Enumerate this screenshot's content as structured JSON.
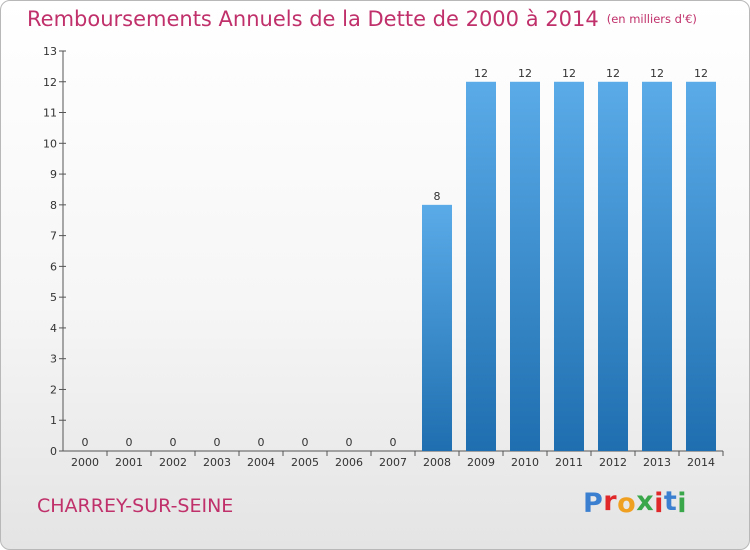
{
  "header": {
    "title": "Remboursements Annuels de la Dette de 2000 à 2014",
    "unit": "(en milliers d'€)"
  },
  "footer": {
    "commune": "CHARREY-SUR-SEINE",
    "logo": [
      "P",
      "r",
      "o",
      "x",
      "i",
      "t",
      "i"
    ]
  },
  "colors": {
    "title": "#c0306a",
    "bar_top": "#5aabe8",
    "bar_bottom": "#1f6fb0",
    "logo": [
      "#3a7fd0",
      "#e0282a",
      "#f0a020",
      "#3aa84a",
      "#e0282a",
      "#3a7fd0",
      "#3aa84a"
    ]
  },
  "chart_data": {
    "type": "bar",
    "title": "Remboursements Annuels de la Dette de 2000 à 2014",
    "xlabel": "",
    "ylabel": "",
    "categories": [
      "2000",
      "2001",
      "2002",
      "2003",
      "2004",
      "2005",
      "2006",
      "2007",
      "2008",
      "2009",
      "2010",
      "2011",
      "2012",
      "2013",
      "2014"
    ],
    "values": [
      0,
      0,
      0,
      0,
      0,
      0,
      0,
      0,
      8,
      12,
      12,
      12,
      12,
      12,
      12
    ],
    "value_labels": [
      "0",
      "0",
      "0",
      "0",
      "0",
      "0",
      "0",
      "0",
      "8",
      "12",
      "12",
      "12",
      "12",
      "12",
      "12"
    ],
    "ylim": [
      0,
      13
    ],
    "yticks": [
      0,
      1,
      2,
      3,
      4,
      5,
      6,
      7,
      8,
      9,
      10,
      11,
      12,
      13
    ],
    "grid": false,
    "legend": "none"
  }
}
